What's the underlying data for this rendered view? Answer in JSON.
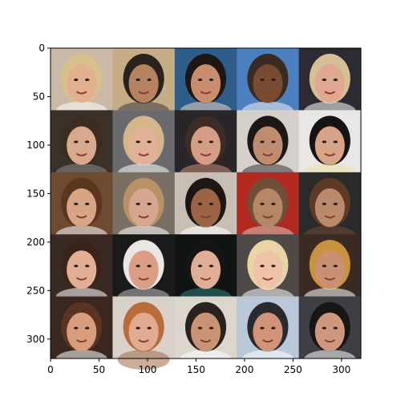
{
  "figure": {
    "background": "#ffffff",
    "frame_color": "#000000",
    "grid": {
      "rows": 5,
      "cols": 5,
      "cell_units": 64,
      "x_range": [
        0,
        320
      ],
      "y_range": [
        0,
        320
      ],
      "y_inverted": true
    },
    "x_ticks": [
      0,
      50,
      100,
      150,
      200,
      250,
      300
    ],
    "y_ticks": [
      0,
      50,
      100,
      150,
      200,
      250,
      300
    ],
    "tiles": [
      {
        "id": "face-r1-c1",
        "bg": "#c9b9a6",
        "skin": "#e2b08e",
        "hair": "#d8c08c",
        "accent": "#ffffff"
      },
      {
        "id": "face-r1-c2",
        "bg": "#c7ad86",
        "skin": "#b5835f",
        "hair": "#2a221c",
        "accent": "#3d3a3e"
      },
      {
        "id": "face-r1-c3",
        "bg": "#2f5d8a",
        "skin": "#c78d6c",
        "hair": "#1d1614",
        "accent": "#e9d5c5"
      },
      {
        "id": "face-r1-c4",
        "bg": "#4a7fc0",
        "skin": "#7a4b33",
        "hair": "#3a2a22",
        "accent": "#f2f2f2"
      },
      {
        "id": "face-r1-c5",
        "bg": "#2c2b33",
        "skin": "#e0a891",
        "hair": "#d7bf95",
        "accent": "#ffffff"
      },
      {
        "id": "face-r2-c1",
        "bg": "#3a3128",
        "skin": "#d9a98d",
        "hair": "#3d2c20",
        "accent": "#8a8a8a"
      },
      {
        "id": "face-r2-c2",
        "bg": "#6a6a6e",
        "skin": "#e0b196",
        "hair": "#d3b68a",
        "accent": "#ffffff"
      },
      {
        "id": "face-r2-c3",
        "bg": "#2a2526",
        "skin": "#d59d86",
        "hair": "#3e2c26",
        "accent": "#c58f7e"
      },
      {
        "id": "face-r2-c4",
        "bg": "#d6d0cc",
        "skin": "#c08c70",
        "hair": "#1c1816",
        "accent": "#3d3434"
      },
      {
        "id": "face-r2-c5",
        "bg": "#e9e6e6",
        "skin": "#d8a487",
        "hair": "#151313",
        "accent": "#ede2a6"
      },
      {
        "id": "face-r3-c1",
        "bg": "#6e4a2f",
        "skin": "#d7a486",
        "hair": "#5a3520",
        "accent": "#ffffff"
      },
      {
        "id": "face-r3-c2",
        "bg": "#7a6f63",
        "skin": "#d7a68f",
        "hair": "#b89266",
        "accent": "#ffffff"
      },
      {
        "id": "face-r3-c3",
        "bg": "#c7beb4",
        "skin": "#9b6545",
        "hair": "#1d1714",
        "accent": "#ffffff"
      },
      {
        "id": "face-r3-c4",
        "bg": "#b22a1f",
        "skin": "#b58767",
        "hair": "#6f4f38",
        "accent": "#d9c6bb"
      },
      {
        "id": "face-r3-c5",
        "bg": "#2a2a2a",
        "skin": "#b98a6b",
        "hair": "#5c3a26",
        "accent": "#6e4a33"
      },
      {
        "id": "face-r4-c1",
        "bg": "#3a2a24",
        "skin": "#e2af95",
        "hair": "#3a241a",
        "accent": "#ffffff"
      },
      {
        "id": "face-r4-c2",
        "bg": "#1a1a1a",
        "skin": "#d99e84",
        "hair": "#e9e6e3",
        "accent": "#bdbdbd"
      },
      {
        "id": "face-r4-c3",
        "bg": "#0f1413",
        "skin": "#e0ad95",
        "hair": "#151515",
        "accent": "#2f7e7a"
      },
      {
        "id": "face-r4-c4",
        "bg": "#4e4a48",
        "skin": "#efc3a7",
        "hair": "#e8d4a4",
        "accent": "#ffffff"
      },
      {
        "id": "face-r4-c5",
        "bg": "#3a2a22",
        "skin": "#c99072",
        "hair": "#c9923e",
        "accent": "#ffffff"
      },
      {
        "id": "face-r5-c1",
        "bg": "#3a2820",
        "skin": "#d89d7d",
        "hair": "#5a3420",
        "accent": "#ffffff"
      },
      {
        "id": "face-r5-c2",
        "bg": "#d9d2cb",
        "skin": "#e0ab90",
        "hair": "#b96c3a",
        "accent": "#a06a4a"
      },
      {
        "id": "face-r5-c3",
        "bg": "#dcd6cf",
        "skin": "#c99476",
        "hair": "#2a221d",
        "accent": "#ffffff"
      },
      {
        "id": "face-r5-c4",
        "bg": "#b9c8d8",
        "skin": "#d29478",
        "hair": "#2a2a2e",
        "accent": "#ffffff"
      },
      {
        "id": "face-r5-c5",
        "bg": "#3e3f44",
        "skin": "#cf987c",
        "hair": "#181515",
        "accent": "#ffffff"
      }
    ]
  }
}
